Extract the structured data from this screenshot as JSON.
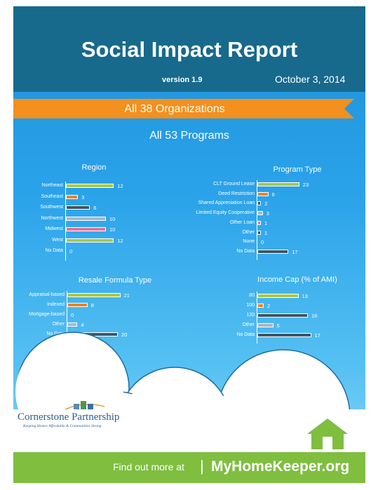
{
  "header": {
    "title": "Social Impact Report",
    "version": "version 1.9",
    "date": "October 3, 2014"
  },
  "banner": {
    "organizations": "All 38 Organizations",
    "programs": "All 53 Programs"
  },
  "colors": {
    "green": "#a8c848",
    "orange": "#ee8224",
    "gray": "#a6b8c6",
    "pink": "#e2719a",
    "dark": "#3c5668",
    "light": "#a9d7ec"
  },
  "chart_data": [
    {
      "type": "bar",
      "title": "Region",
      "categories": [
        "Northeast",
        "Southeast",
        "Southwest",
        "Northwest",
        "Midwest",
        "West",
        "No Data"
      ],
      "values": [
        12,
        3,
        6,
        10,
        10,
        12,
        0
      ],
      "colors": [
        "green",
        "orange",
        "dark",
        "gray",
        "pink",
        "green",
        "dark"
      ]
    },
    {
      "type": "bar",
      "title": "Program Type",
      "categories": [
        "CLT Ground Lease",
        "Deed Restriction",
        "Shared Appreciation Loan",
        "Limited Equity Cooperative",
        "Other Loan",
        "Other",
        "None",
        "No Data"
      ],
      "values": [
        23,
        6,
        2,
        3,
        1,
        1,
        0,
        17
      ],
      "colors": [
        "green",
        "orange",
        "dark",
        "gray",
        "pink",
        "dark",
        "dark",
        "dark"
      ]
    },
    {
      "type": "bar",
      "title": "Resale Formula Type",
      "categories": [
        "Appraisal-based",
        "Indexed",
        "Mortgage-based",
        "Other",
        "No Data"
      ],
      "values": [
        21,
        8,
        0,
        4,
        20
      ],
      "colors": [
        "green",
        "orange",
        "dark",
        "gray",
        "dark"
      ]
    },
    {
      "type": "bar",
      "title": "Income Cap (% of AMI)",
      "categories": [
        "80",
        "100",
        "120",
        "Other",
        "No Data"
      ],
      "values": [
        13,
        2,
        16,
        5,
        17
      ],
      "colors": [
        "green",
        "orange",
        "dark",
        "gray",
        "dark"
      ]
    }
  ],
  "logo": {
    "name": "Cornerstone Partnership",
    "tagline": "Keeping Homes Affordable & Communities Strong"
  },
  "footer": {
    "text": "Find out more at",
    "separator": "|",
    "site": "MyHomeKeeper.org"
  }
}
